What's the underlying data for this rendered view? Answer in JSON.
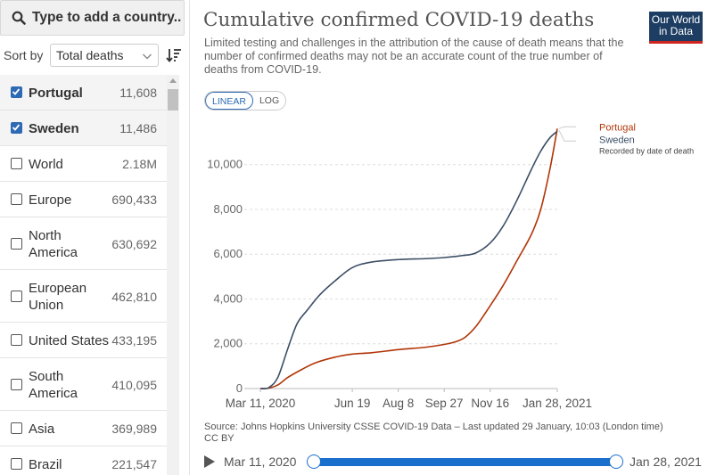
{
  "search": {
    "placeholder": "Type to add a country.."
  },
  "sort": {
    "label": "Sort by",
    "selected": "Total deaths"
  },
  "entities": [
    {
      "name": "Portugal",
      "value": "11,608",
      "checked": true
    },
    {
      "name": "Sweden",
      "value": "11,486",
      "checked": true
    },
    {
      "name": "World",
      "value": "2.18M",
      "checked": false
    },
    {
      "name": "Europe",
      "value": "690,433",
      "checked": false
    },
    {
      "name": "North\nAmerica",
      "value": "630,692",
      "checked": false
    },
    {
      "name": "European\nUnion",
      "value": "462,810",
      "checked": false
    },
    {
      "name": "United States",
      "value": "433,195",
      "checked": false
    },
    {
      "name": "South\nAmerica",
      "value": "410,095",
      "checked": false
    },
    {
      "name": "Asia",
      "value": "369,989",
      "checked": false
    },
    {
      "name": "Brazil",
      "value": "221,547",
      "checked": false
    }
  ],
  "header": {
    "title": "Cumulative confirmed COVID-19 deaths",
    "subtitle": "Limited testing and challenges in the attribution of the cause of death means that the number of confirmed deaths may not be an accurate count of the true number of deaths from COVID-19.",
    "logo_line1": "Our World",
    "logo_line2": "in Data"
  },
  "scale_toggle": {
    "linear": "LINEAR",
    "log": "LOG",
    "active": "linear"
  },
  "colors": {
    "portugal": "#b13507",
    "sweden": "#3c4e66",
    "accent": "#2d6ab3",
    "grid": "#dddddd"
  },
  "chart_data": {
    "type": "line",
    "title": "Cumulative confirmed COVID-19 deaths",
    "x_tick_labels": [
      "Mar 11, 2020",
      "Jun 19",
      "Aug 8",
      "Sep 27",
      "Nov 16",
      "Jan 28, 2021"
    ],
    "x_ticks": [
      "2020-03-11",
      "2020-06-19",
      "2020-08-08",
      "2020-09-27",
      "2020-11-16",
      "2021-01-28"
    ],
    "xlim": [
      "2020-03-11",
      "2021-01-28"
    ],
    "ylim": [
      0,
      11700
    ],
    "y_ticks": [
      0,
      2000,
      4000,
      6000,
      8000,
      10000
    ],
    "y_tick_labels": [
      "0",
      "2,000",
      "4,000",
      "6,000",
      "8,000",
      "10,000"
    ],
    "grid": "horizontal dashed",
    "legend": "right end of lines",
    "annotation": "Recorded by date of death",
    "series": [
      {
        "name": "Portugal",
        "x": [
          "2020-03-11",
          "2020-03-20",
          "2020-03-30",
          "2020-04-10",
          "2020-04-25",
          "2020-05-10",
          "2020-05-31",
          "2020-06-19",
          "2020-07-10",
          "2020-08-08",
          "2020-09-06",
          "2020-09-27",
          "2020-10-10",
          "2020-10-20",
          "2020-11-01",
          "2020-11-16",
          "2020-11-30",
          "2020-12-15",
          "2020-12-31",
          "2021-01-10",
          "2021-01-20",
          "2021-01-28"
        ],
        "values": [
          0,
          20,
          160,
          500,
          850,
          1150,
          1400,
          1540,
          1600,
          1740,
          1840,
          1970,
          2100,
          2300,
          2800,
          3700,
          4600,
          5700,
          6900,
          8000,
          9800,
          11608
        ]
      },
      {
        "name": "Sweden",
        "x": [
          "2020-03-11",
          "2020-03-20",
          "2020-03-30",
          "2020-04-10",
          "2020-04-20",
          "2020-05-01",
          "2020-05-15",
          "2020-05-31",
          "2020-06-19",
          "2020-07-10",
          "2020-08-08",
          "2020-09-06",
          "2020-09-27",
          "2020-10-15",
          "2020-10-31",
          "2020-11-16",
          "2020-11-30",
          "2020-12-15",
          "2020-12-31",
          "2021-01-10",
          "2021-01-20",
          "2021-01-28"
        ],
        "values": [
          0,
          40,
          500,
          1800,
          2900,
          3500,
          4200,
          4800,
          5400,
          5650,
          5760,
          5800,
          5850,
          5930,
          6050,
          6500,
          7250,
          8400,
          9800,
          10600,
          11200,
          11486
        ]
      }
    ]
  },
  "source": {
    "line1": "Source: Johns Hopkins University CSSE COVID-19 Data – Last updated 29 January, 10:03 (London time)",
    "line2": "CC BY"
  },
  "timeline": {
    "start": "Mar 11, 2020",
    "end": "Jan 28, 2021"
  }
}
